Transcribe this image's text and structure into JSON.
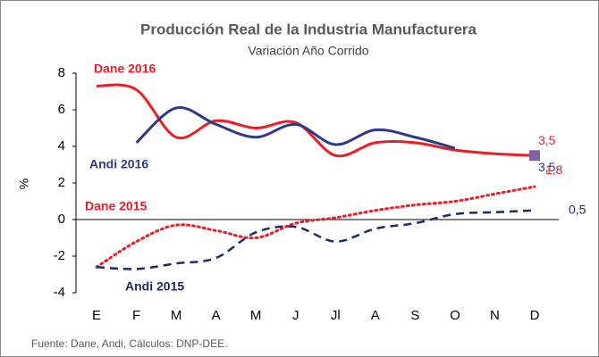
{
  "chart_data": {
    "type": "line",
    "title": "Producción Real de la Industria Manufacturera",
    "subtitle": "Variación Año Corrido",
    "y_label": "%",
    "source": "Fuente: Dane, Andi,  Cálculos: DNP-DEE.",
    "categories": [
      "E",
      "F",
      "M",
      "A",
      "M",
      "J",
      "Jl",
      "A",
      "S",
      "O",
      "N",
      "D"
    ],
    "ylim": [
      -4,
      8
    ],
    "yticks": [
      -4,
      -2,
      0,
      2,
      4,
      6,
      8
    ],
    "series": [
      {
        "name": "Dane 2016",
        "color": "#ee1c25",
        "style": "solid",
        "values": [
          7.3,
          7.1,
          4.5,
          5.4,
          5.0,
          5.3,
          3.5,
          4.2,
          4.2,
          3.8,
          3.6,
          3.5
        ],
        "value_labels": [
          null,
          null,
          null,
          null,
          null,
          null,
          null,
          null,
          null,
          null,
          null,
          "3,5"
        ]
      },
      {
        "name": "Andi 2016",
        "color": "#2e3a87",
        "style": "solid",
        "end_marker_color": "#8064a2",
        "values": [
          null,
          4.2,
          6.1,
          5.2,
          4.5,
          5.2,
          4.1,
          4.9,
          4.5,
          3.9,
          null,
          3.5
        ],
        "value_labels": [
          null,
          null,
          null,
          null,
          null,
          null,
          null,
          null,
          null,
          null,
          null,
          "3,5"
        ]
      },
      {
        "name": "Dane 2015",
        "color": "#ee1c25",
        "style": "dotted",
        "values": [
          -2.6,
          -1.2,
          -0.3,
          -0.6,
          -1.0,
          -0.2,
          0.1,
          0.5,
          0.8,
          1.0,
          1.4,
          1.8
        ],
        "value_labels": [
          null,
          null,
          null,
          null,
          null,
          null,
          null,
          null,
          null,
          null,
          null,
          "1,8"
        ]
      },
      {
        "name": "Andi 2015",
        "color": "#1f2a6b",
        "style": "dashed",
        "values": [
          -2.6,
          -2.7,
          -2.4,
          -2.1,
          -0.7,
          -0.4,
          -1.2,
          -0.5,
          -0.2,
          0.3,
          0.4,
          0.5
        ],
        "value_labels": [
          null,
          null,
          null,
          null,
          null,
          null,
          null,
          null,
          null,
          null,
          null,
          "0,5"
        ]
      }
    ]
  }
}
